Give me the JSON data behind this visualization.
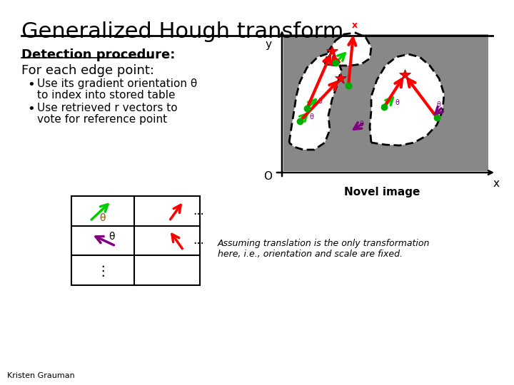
{
  "title": "Generalized Hough transform",
  "subtitle_bold": "Detection procedure:",
  "line1": "For each edge point:",
  "bullet1_line1": "Use its gradient orientation θ",
  "bullet1_line2": "to index into stored table",
  "bullet2_line1": "Use retrieved r vectors to",
  "bullet2_line2": "vote for reference point",
  "novel_image_label": "Novel image",
  "x_label": "x",
  "y_label": "y",
  "o_label": "O",
  "italic_text": "Assuming translation is the only transformation\nhere, i.e., orientation and scale are fixed.",
  "footer": "Kristen Grauman",
  "bg_color": "#ffffff",
  "gray_box_color": "#888888",
  "theta": "θ",
  "dots": "...",
  "vdots": "⋮",
  "bullet": "•"
}
